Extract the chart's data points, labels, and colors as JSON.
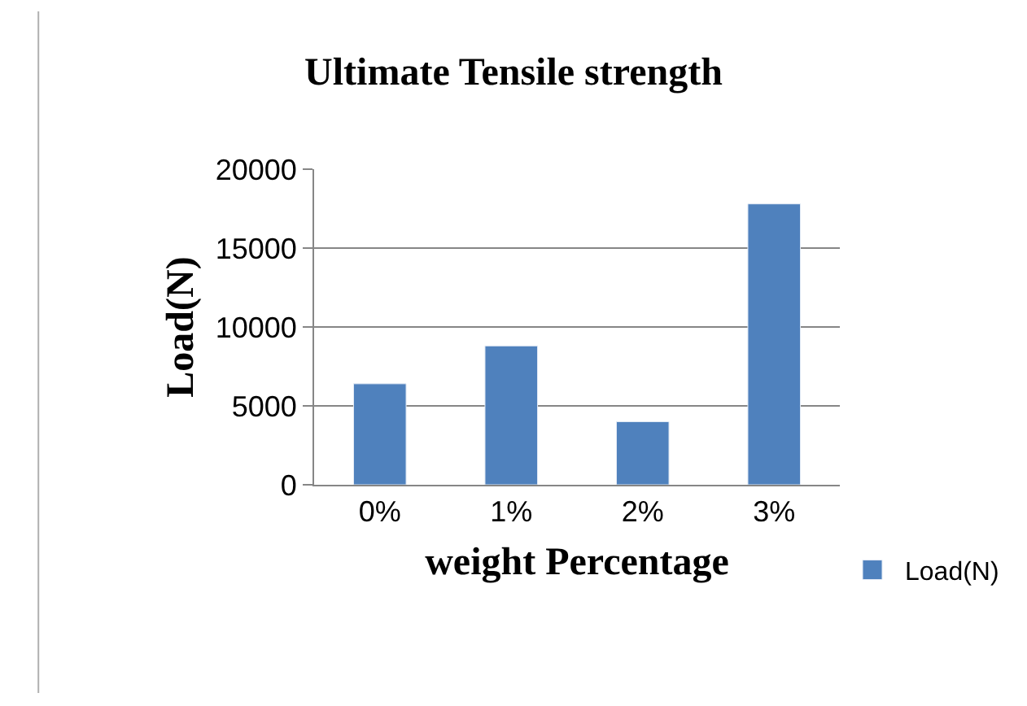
{
  "chart_data": {
    "type": "bar",
    "title": "Ultimate Tensile strength",
    "xlabel": "weight Percentage",
    "ylabel": "Load(N)",
    "categories": [
      "0%",
      "1%",
      "2%",
      "3%"
    ],
    "series": [
      {
        "name": "Load(N)",
        "color": "#4f81bd",
        "values": [
          6400,
          8800,
          4000,
          17800
        ]
      }
    ],
    "ylim": [
      0,
      20000
    ],
    "yticks": [
      0,
      5000,
      10000,
      15000,
      20000
    ],
    "grid": "y",
    "legend": "bottom right"
  }
}
